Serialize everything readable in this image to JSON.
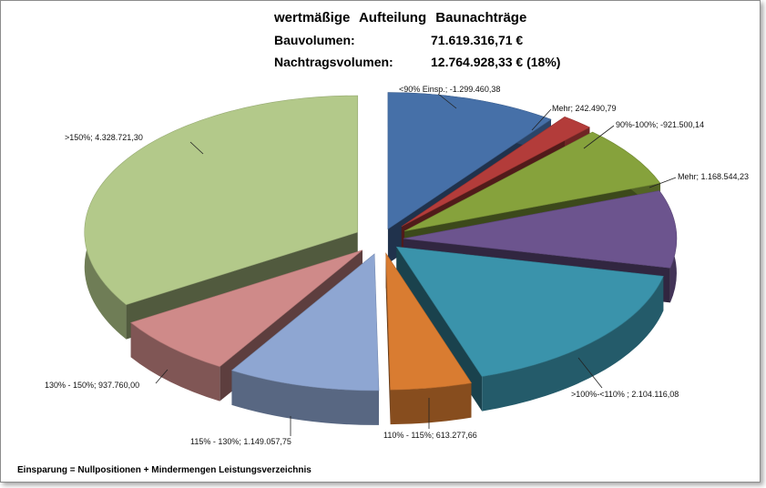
{
  "chart_data": {
    "type": "pie",
    "style": "3d-exploded",
    "title": "wertmäßige  Aufteilung  Baunachträge",
    "summary": [
      {
        "label": "Bauvolumen:",
        "value": "71.619.316,71 €"
      },
      {
        "label": "Nachtragsvolumen:",
        "value": "12.764.928,33 €  (18%)"
      }
    ],
    "slices": [
      {
        "name": "<90% Einsp.",
        "label": "<90% Einsp.; -1.299.460,38",
        "value": -1299460.38,
        "color": "#4670a8"
      },
      {
        "name": "Mehr",
        "label": "Mehr; 242.490,79",
        "value": 242490.79,
        "color": "#b33c3a"
      },
      {
        "name": "90%-100%",
        "label": "90%-100%; -921.500,14",
        "value": -921500.14,
        "color": "#86a23c"
      },
      {
        "name": "Mehr",
        "label": "Mehr; 1.168.544,23",
        "value": 1168544.23,
        "color": "#6c548e"
      },
      {
        "name": ">100%-<110%",
        "label": ">100%-<110% ; 2.104.116,08",
        "value": 2104116.08,
        "color": "#3a93ab"
      },
      {
        "name": "110% - 115%",
        "label": "110% - 115%; 613.277,66",
        "value": 613277.66,
        "color": "#d97c31"
      },
      {
        "name": "115% - 130%",
        "label": "115% - 130%; 1.149.057,75",
        "value": 1149057.75,
        "color": "#8ea6d2"
      },
      {
        "name": "130% - 150%",
        "label": "130% - 150%; 937.760,00",
        "value": 937760.0,
        "color": "#cf8a89"
      },
      {
        "name": ">150%",
        "label": ">150%; 4.328.721,30",
        "value": 4328721.3,
        "color": "#b3c98a"
      }
    ],
    "legend": "none",
    "footnote": "Einsparung = Nullpositionen + Mindermengen Leistungsverzeichnis"
  }
}
